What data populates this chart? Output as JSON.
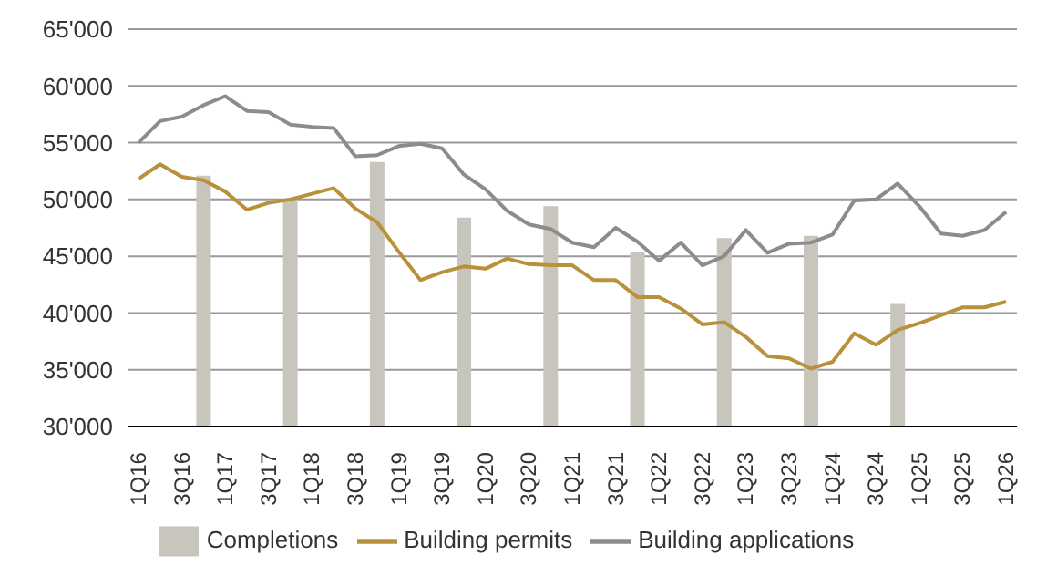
{
  "chart_data": {
    "type": "line",
    "categories": [
      "1Q16",
      null,
      "3Q16",
      null,
      "1Q17",
      null,
      "3Q17",
      null,
      "1Q18",
      null,
      "3Q18",
      null,
      "1Q19",
      null,
      "3Q19",
      null,
      "1Q20",
      null,
      "3Q20",
      null,
      "1Q21",
      null,
      "3Q21",
      null,
      "1Q22",
      null,
      "3Q22",
      null,
      "1Q23",
      null,
      "3Q23",
      null,
      "1Q24",
      null,
      "3Q24",
      null,
      "1Q25",
      null,
      "3Q25",
      null,
      "1Q26"
    ],
    "series": [
      {
        "name": "Completions",
        "type": "bar",
        "color": "#c8c6bc",
        "values": [
          null,
          null,
          null,
          52100,
          null,
          null,
          null,
          50000,
          null,
          null,
          null,
          53300,
          null,
          null,
          null,
          48400,
          null,
          null,
          null,
          49400,
          null,
          null,
          null,
          45400,
          null,
          null,
          null,
          46600,
          null,
          null,
          null,
          46800,
          null,
          null,
          null,
          40800,
          null,
          null,
          null,
          null,
          null
        ]
      },
      {
        "name": "Building permits",
        "color": "#b8913a",
        "values": [
          51800,
          53100,
          52000,
          51700,
          50700,
          49100,
          49700,
          50000,
          50500,
          51000,
          49200,
          48000,
          45400,
          42900,
          43600,
          44100,
          43900,
          44800,
          44300,
          44200,
          44200,
          42900,
          42900,
          41400,
          41400,
          40400,
          39000,
          39200,
          37900,
          36200,
          36000,
          35100,
          35700,
          38200,
          37200,
          38500,
          39100,
          39800,
          40500,
          40500,
          41000
        ]
      },
      {
        "name": "Building applications",
        "color": "#8c8c8c",
        "values": [
          55000,
          56900,
          57300,
          58300,
          59100,
          57800,
          57700,
          56600,
          56400,
          56300,
          53800,
          53900,
          54700,
          54900,
          54500,
          52200,
          50900,
          49000,
          47800,
          47400,
          46200,
          45800,
          47500,
          46300,
          44600,
          46200,
          44200,
          45000,
          47300,
          45300,
          46100,
          46200,
          46900,
          49900,
          50000,
          51400,
          49400,
          47000,
          46800,
          47300,
          48900
        ]
      }
    ],
    "ylim": [
      30000,
      65000
    ],
    "yticks": [
      {
        "value": 30000,
        "label": "30'000"
      },
      {
        "value": 35000,
        "label": "35'000"
      },
      {
        "value": 40000,
        "label": "40'000"
      },
      {
        "value": 45000,
        "label": "45'000"
      },
      {
        "value": 50000,
        "label": "50'000"
      },
      {
        "value": 55000,
        "label": "55'000"
      },
      {
        "value": 60000,
        "label": "60'000"
      },
      {
        "value": 65000,
        "label": "65'000"
      }
    ],
    "grid": "y",
    "legend": "bottom",
    "marker": "none",
    "line_style": "solid"
  }
}
